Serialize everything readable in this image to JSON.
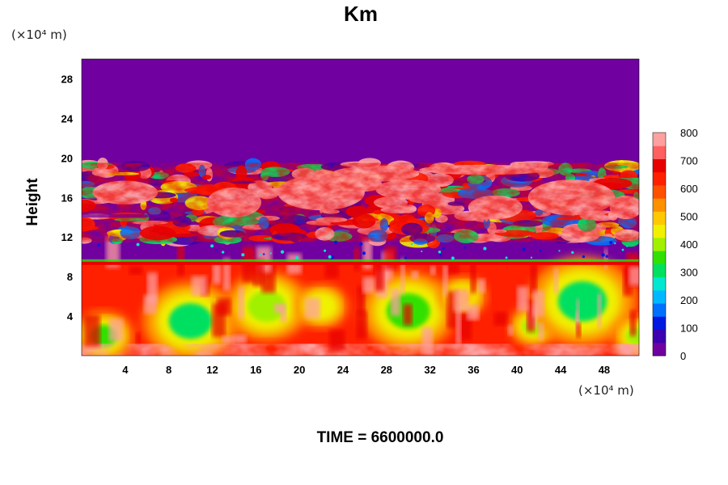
{
  "chart_data": {
    "type": "heatmap",
    "title": "Km",
    "xlabel": "",
    "ylabel": "Height",
    "x_unit": "(×10⁴ m)",
    "y_unit": "(×10⁴ m)",
    "xlim": [
      0,
      51.2
    ],
    "ylim": [
      0,
      30
    ],
    "x_ticks": [
      4,
      8,
      12,
      16,
      20,
      24,
      28,
      32,
      36,
      40,
      44,
      48
    ],
    "y_ticks": [
      4,
      8,
      12,
      16,
      20,
      24,
      28
    ],
    "colorbar": {
      "min": 0,
      "max": 800,
      "ticks": [
        0,
        100,
        200,
        300,
        400,
        500,
        600,
        700,
        800
      ],
      "colors": [
        "#7000a0",
        "#3c00b0",
        "#0018e0",
        "#0070ff",
        "#00b8ff",
        "#00e8d0",
        "#00e060",
        "#30e000",
        "#a0f000",
        "#f0f000",
        "#ffc800",
        "#ff9000",
        "#ff5000",
        "#ff2000",
        "#e80000",
        "#ff6060",
        "#ffa0a0"
      ]
    },
    "regions": [
      {
        "name": "upper_quiet_layer",
        "y_range": [
          19.5,
          30
        ],
        "value": 0
      },
      {
        "name": "turbulent_band",
        "y_range": [
          11.5,
          19.5
        ],
        "value_range": [
          0,
          800
        ]
      },
      {
        "name": "quiet_gap",
        "y_range": [
          9.5,
          11.5
        ],
        "value": 0
      },
      {
        "name": "convective_layer",
        "y_range": [
          0,
          9.5
        ],
        "value_range": [
          300,
          800
        ]
      }
    ],
    "annotation": "TIME = 6600000.0"
  }
}
